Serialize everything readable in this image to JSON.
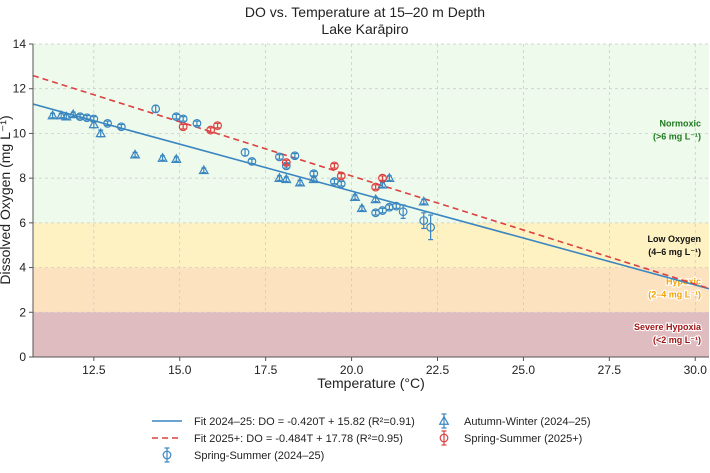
{
  "chart_data": {
    "type": "scatter",
    "title": "DO vs. Temperature at 15–20 m Depth",
    "subtitle": "Lake Karāpiro",
    "xlabel": "Temperature (°C)",
    "ylabel": "Dissolved Oxygen (mg L⁻¹)",
    "xlim": [
      10.73,
      30.4
    ],
    "ylim": [
      0,
      14
    ],
    "xticks": [
      12.5,
      15.0,
      17.5,
      20.0,
      22.5,
      25.0,
      27.5,
      30.0
    ],
    "xtick_labels": [
      "12.5",
      "15.0",
      "17.5",
      "20.0",
      "22.5",
      "25.0",
      "27.5",
      "30.0"
    ],
    "yticks": [
      0,
      2,
      4,
      6,
      8,
      10,
      12,
      14
    ],
    "ytick_labels": [
      "0",
      "2",
      "4",
      "6",
      "8",
      "10",
      "12",
      "14"
    ],
    "grid": true,
    "legend_position": "below",
    "zones": [
      {
        "name": "normoxic",
        "range": [
          6,
          14
        ],
        "color": "#edfaec",
        "label": "Normoxic",
        "sublabel": "(>6 mg L⁻¹)",
        "text_color": "#1e7a1e",
        "label_y": 10.3,
        "outline": false
      },
      {
        "name": "low-oxygen",
        "range": [
          4,
          6
        ],
        "color": "#fff2c2",
        "label": "Low Oxygen",
        "sublabel": "(4–6 mg L⁻¹)",
        "text_color": "#111111",
        "label_y": 5.15,
        "outline": false
      },
      {
        "name": "hypoxic",
        "range": [
          2,
          4
        ],
        "color": "#fde2c0",
        "label": "Hypoxic",
        "sublabel": "(2–4 mg L⁻¹)",
        "text_color": "#f5a000",
        "label_y": 3.25,
        "outline": true
      },
      {
        "name": "severe-hypoxia",
        "range": [
          0,
          2
        ],
        "color": "#dfbcbf",
        "label": "Severe Hypoxia",
        "sublabel": "(<2 mg L⁻¹)",
        "text_color": "#a01515",
        "label_y": 1.2,
        "outline": true
      }
    ],
    "fits": [
      {
        "name": "fit-2024-25",
        "slope": -0.42,
        "intercept": 15.82,
        "r2": 0.91,
        "color": "#3a86c0",
        "dash": false,
        "legend": "Fit 2024–25: DO = -0.420T + 15.82 (R²=0.91)"
      },
      {
        "name": "fit-2025plus",
        "slope": -0.484,
        "intercept": 17.78,
        "r2": 0.95,
        "color": "#dd4040",
        "dash": true,
        "legend": "Fit 2025+: DO = -0.484T + 17.78 (R²=0.95)"
      }
    ],
    "series": [
      {
        "name": "Spring-Summer (2024–25)",
        "marker": "circle",
        "color": "#3a86c0",
        "points": [
          [
            12.1,
            10.75,
            0.1
          ],
          [
            12.3,
            10.7,
            0.1
          ],
          [
            12.5,
            10.65,
            0.1
          ],
          [
            12.9,
            10.45,
            0.1
          ],
          [
            13.3,
            10.3,
            0.1
          ],
          [
            14.3,
            11.1,
            0.15
          ],
          [
            14.9,
            10.75,
            0.1
          ],
          [
            15.1,
            10.65,
            0.1
          ],
          [
            15.5,
            10.45,
            0.1
          ],
          [
            16.9,
            9.15,
            0.15
          ],
          [
            17.1,
            8.75,
            0.1
          ],
          [
            17.9,
            8.95,
            0.1
          ],
          [
            18.1,
            8.55,
            0.1
          ],
          [
            18.35,
            9.0,
            0.1
          ],
          [
            18.9,
            8.2,
            0.1
          ],
          [
            19.5,
            7.85,
            0.1
          ],
          [
            19.7,
            7.75,
            0.1
          ],
          [
            20.7,
            6.45,
            0.1
          ],
          [
            20.9,
            6.55,
            0.1
          ],
          [
            21.1,
            6.7,
            0.1
          ],
          [
            21.3,
            6.75,
            0.1
          ],
          [
            21.5,
            6.5,
            0.3
          ],
          [
            22.1,
            6.1,
            0.35
          ],
          [
            22.3,
            5.8,
            0.55
          ]
        ]
      },
      {
        "name": "Autumn-Winter (2024–25)",
        "marker": "triangle",
        "color": "#3a86c0",
        "points": [
          [
            11.3,
            10.8,
            0.1
          ],
          [
            11.55,
            10.8,
            0.1
          ],
          [
            11.7,
            10.75,
            0.1
          ],
          [
            11.9,
            10.85,
            0.1
          ],
          [
            12.5,
            10.4,
            0.15
          ],
          [
            12.7,
            10.0,
            0.15
          ],
          [
            13.7,
            9.05,
            0.1
          ],
          [
            14.5,
            8.9,
            0.1
          ],
          [
            14.9,
            8.85,
            0.1
          ],
          [
            15.7,
            8.35,
            0.1
          ],
          [
            17.9,
            8.0,
            0.1
          ],
          [
            18.1,
            7.95,
            0.1
          ],
          [
            18.5,
            7.8,
            0.1
          ],
          [
            18.9,
            7.95,
            0.1
          ],
          [
            20.1,
            7.15,
            0.1
          ],
          [
            20.3,
            6.65,
            0.1
          ],
          [
            20.7,
            7.05,
            0.1
          ],
          [
            20.9,
            7.7,
            0.1
          ],
          [
            21.1,
            8.0,
            0.1
          ],
          [
            22.1,
            6.95,
            0.1
          ]
        ]
      },
      {
        "name": "Spring-Summer (2025+)",
        "marker": "circle",
        "color": "#dd4040",
        "points": [
          [
            15.1,
            10.3,
            0.1
          ],
          [
            15.9,
            10.15,
            0.1
          ],
          [
            16.1,
            10.35,
            0.1
          ],
          [
            18.1,
            8.7,
            0.1
          ],
          [
            19.5,
            8.55,
            0.1
          ],
          [
            19.7,
            8.1,
            0.1
          ],
          [
            20.7,
            7.6,
            0.1
          ],
          [
            20.9,
            8.0,
            0.1
          ]
        ]
      }
    ],
    "legend": {
      "col1": [
        "Fit 2024–25: DO = -0.420T + 15.82 (R²=0.91)",
        "Fit 2025+: DO = -0.484T + 17.78 (R²=0.95)",
        "Spring-Summer (2024–25)"
      ],
      "col2": [
        "Autumn-Winter (2024–25)",
        "Spring-Summer (2025+)"
      ]
    }
  }
}
